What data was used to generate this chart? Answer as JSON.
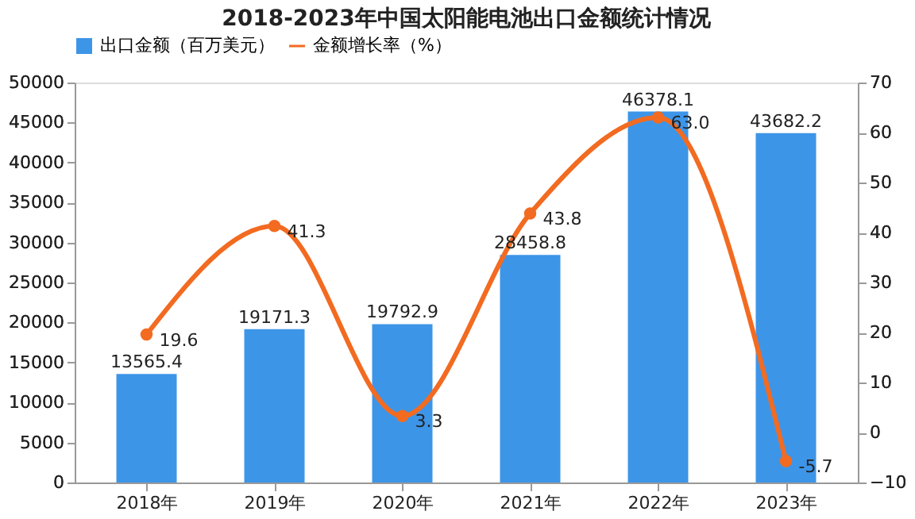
{
  "chart_data": {
    "type": "bar",
    "title": "2018-2023年中国太阳能电池出口金额统计情况",
    "categories": [
      "2018年",
      "2019年",
      "2020年",
      "2021年",
      "2022年",
      "2023年"
    ],
    "series": [
      {
        "name": "出口金额（百万美元）",
        "color": "#3d95e8",
        "values": [
          13565.4,
          19171.3,
          19792.9,
          28458.8,
          46378.1,
          43682.2
        ],
        "value_labels": [
          "13565.4",
          "19171.3",
          "19792.9",
          "28458.8",
          "46378.1",
          "43682.2"
        ]
      },
      {
        "name": "金额增长率（%）",
        "type": "line",
        "axis": "y2",
        "color": "#f26b21",
        "marker": "circle",
        "values": [
          19.6,
          41.3,
          3.3,
          43.8,
          63.0,
          -5.7
        ],
        "value_labels": [
          "19.6",
          "41.3",
          "3.3",
          "43.8",
          "63.0",
          "-5.7"
        ]
      }
    ],
    "ylim": [
      0,
      50000
    ],
    "yticks": [
      0,
      5000,
      10000,
      15000,
      20000,
      25000,
      30000,
      35000,
      40000,
      45000,
      50000
    ],
    "y2lim": [
      -10,
      70
    ],
    "y2ticks": [
      -10,
      0,
      10,
      20,
      30,
      40,
      50,
      60,
      70
    ],
    "legend": "top",
    "grid": false
  }
}
